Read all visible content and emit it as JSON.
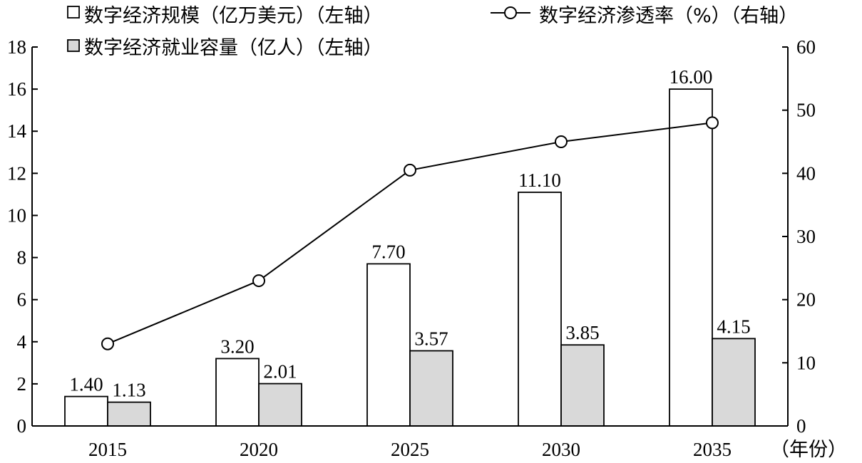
{
  "chart_data": {
    "type": "bar",
    "categories": [
      "2015",
      "2020",
      "2025",
      "2030",
      "2035"
    ],
    "series": [
      {
        "name": "数字经济规模（亿万美元）（左轴）",
        "kind": "bar",
        "axis": "left",
        "color": "#ffffff",
        "values": [
          1.4,
          3.2,
          7.7,
          11.1,
          16.0
        ],
        "labels": [
          "1.40",
          "3.20",
          "7.70",
          "11.10",
          "16.00"
        ]
      },
      {
        "name": "数字经济就业容量（亿人）（左轴）",
        "kind": "bar",
        "axis": "right_of_pair",
        "color": "#d9d9d9",
        "values": [
          1.13,
          2.01,
          3.57,
          3.85,
          4.15
        ],
        "labels": [
          "1.13",
          "2.01",
          "3.57",
          "3.85",
          "4.15"
        ]
      },
      {
        "name": "数字经济渗透率（%）（右轴）",
        "kind": "line",
        "axis": "right",
        "color": "#000000",
        "values": [
          13,
          23,
          40.5,
          45,
          48
        ]
      }
    ],
    "left_axis": {
      "ylim": [
        0,
        18
      ],
      "ticks": [
        "0",
        "2",
        "4",
        "6",
        "8",
        "10",
        "12",
        "14",
        "16",
        "18"
      ]
    },
    "right_axis": {
      "ylim": [
        0,
        60
      ],
      "ticks": [
        "0",
        "10",
        "20",
        "30",
        "40",
        "50",
        "60"
      ]
    },
    "xlabel": "（年份）",
    "legend_placement": "top",
    "grid": false
  }
}
